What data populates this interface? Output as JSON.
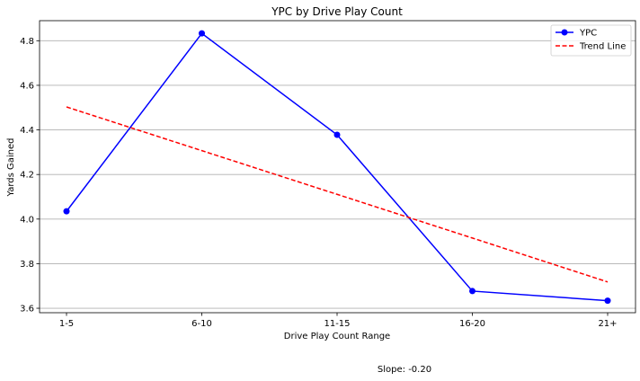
{
  "chart_data": {
    "type": "line",
    "title": "YPC by Drive Play Count",
    "xlabel": "Drive Play Count Range",
    "ylabel": "Yards Gained",
    "categories": [
      "1-5",
      "6-10",
      "11-15",
      "16-20",
      "21+"
    ],
    "ylim": [
      3.58,
      4.89
    ],
    "yticks": [
      3.6,
      3.8,
      4.0,
      4.2,
      4.4,
      4.6,
      4.8
    ],
    "ytick_labels": [
      "3.6",
      "3.8",
      "4.0",
      "4.2",
      "4.4",
      "4.6",
      "4.8"
    ],
    "grid": "horizontal",
    "legend_position": "top-right",
    "series": [
      {
        "name": "YPC",
        "values": [
          4.035,
          4.833,
          4.378,
          3.677,
          3.634
        ],
        "color": "#0000ff",
        "style": "solid",
        "marker": "circle"
      },
      {
        "name": "Trend Line",
        "values": [
          4.503,
          4.307,
          4.111,
          3.915,
          3.718
        ],
        "color": "#ff0000",
        "style": "dashed",
        "marker": "none"
      }
    ],
    "annotation": "Slope: -0.20"
  }
}
